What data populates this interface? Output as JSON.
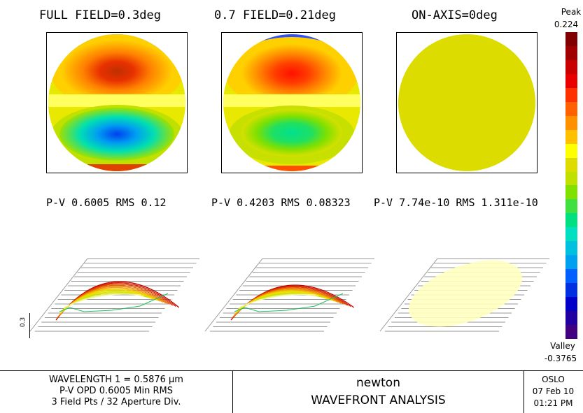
{
  "fields": [
    {
      "title": "FULL FIELD=0.3deg",
      "stats": "P-V 0.6005 RMS 0.12"
    },
    {
      "title": "0.7 FIELD=0.21deg",
      "stats": "P-V 0.4203 RMS 0.08323"
    },
    {
      "title": "ON-AXIS=0deg",
      "stats": "P-V 7.74e-10 RMS 1.311e-10"
    }
  ],
  "scale": {
    "peak_label": "Peak",
    "peak_value": "0.224",
    "valley_label": "Valley",
    "valley_value": "-0.3765",
    "colors": [
      "#800000",
      "#a00000",
      "#c80000",
      "#e80000",
      "#ff3000",
      "#ff6000",
      "#ff9000",
      "#ffc000",
      "#ffff00",
      "#dcdc00",
      "#c0e000",
      "#80e000",
      "#40e040",
      "#00e080",
      "#00e0c0",
      "#00c0e0",
      "#00a0f0",
      "#0060ff",
      "#0030e0",
      "#0000c8",
      "#2000a0",
      "#400080"
    ]
  },
  "axis_scale_label": "0.3",
  "footer": {
    "wavelength": "WAVELENGTH 1 = 0.5876 μm",
    "pv_opd": "P-V OPD 0.6005  Min RMS",
    "field_pts": "3 Field Pts / 32 Aperture Div.",
    "lens_name": "newton",
    "analysis_title": "WAVEFRONT ANALYSIS",
    "program": "OSLO",
    "date": "07 Feb 10",
    "time": "01:21 PM"
  }
}
